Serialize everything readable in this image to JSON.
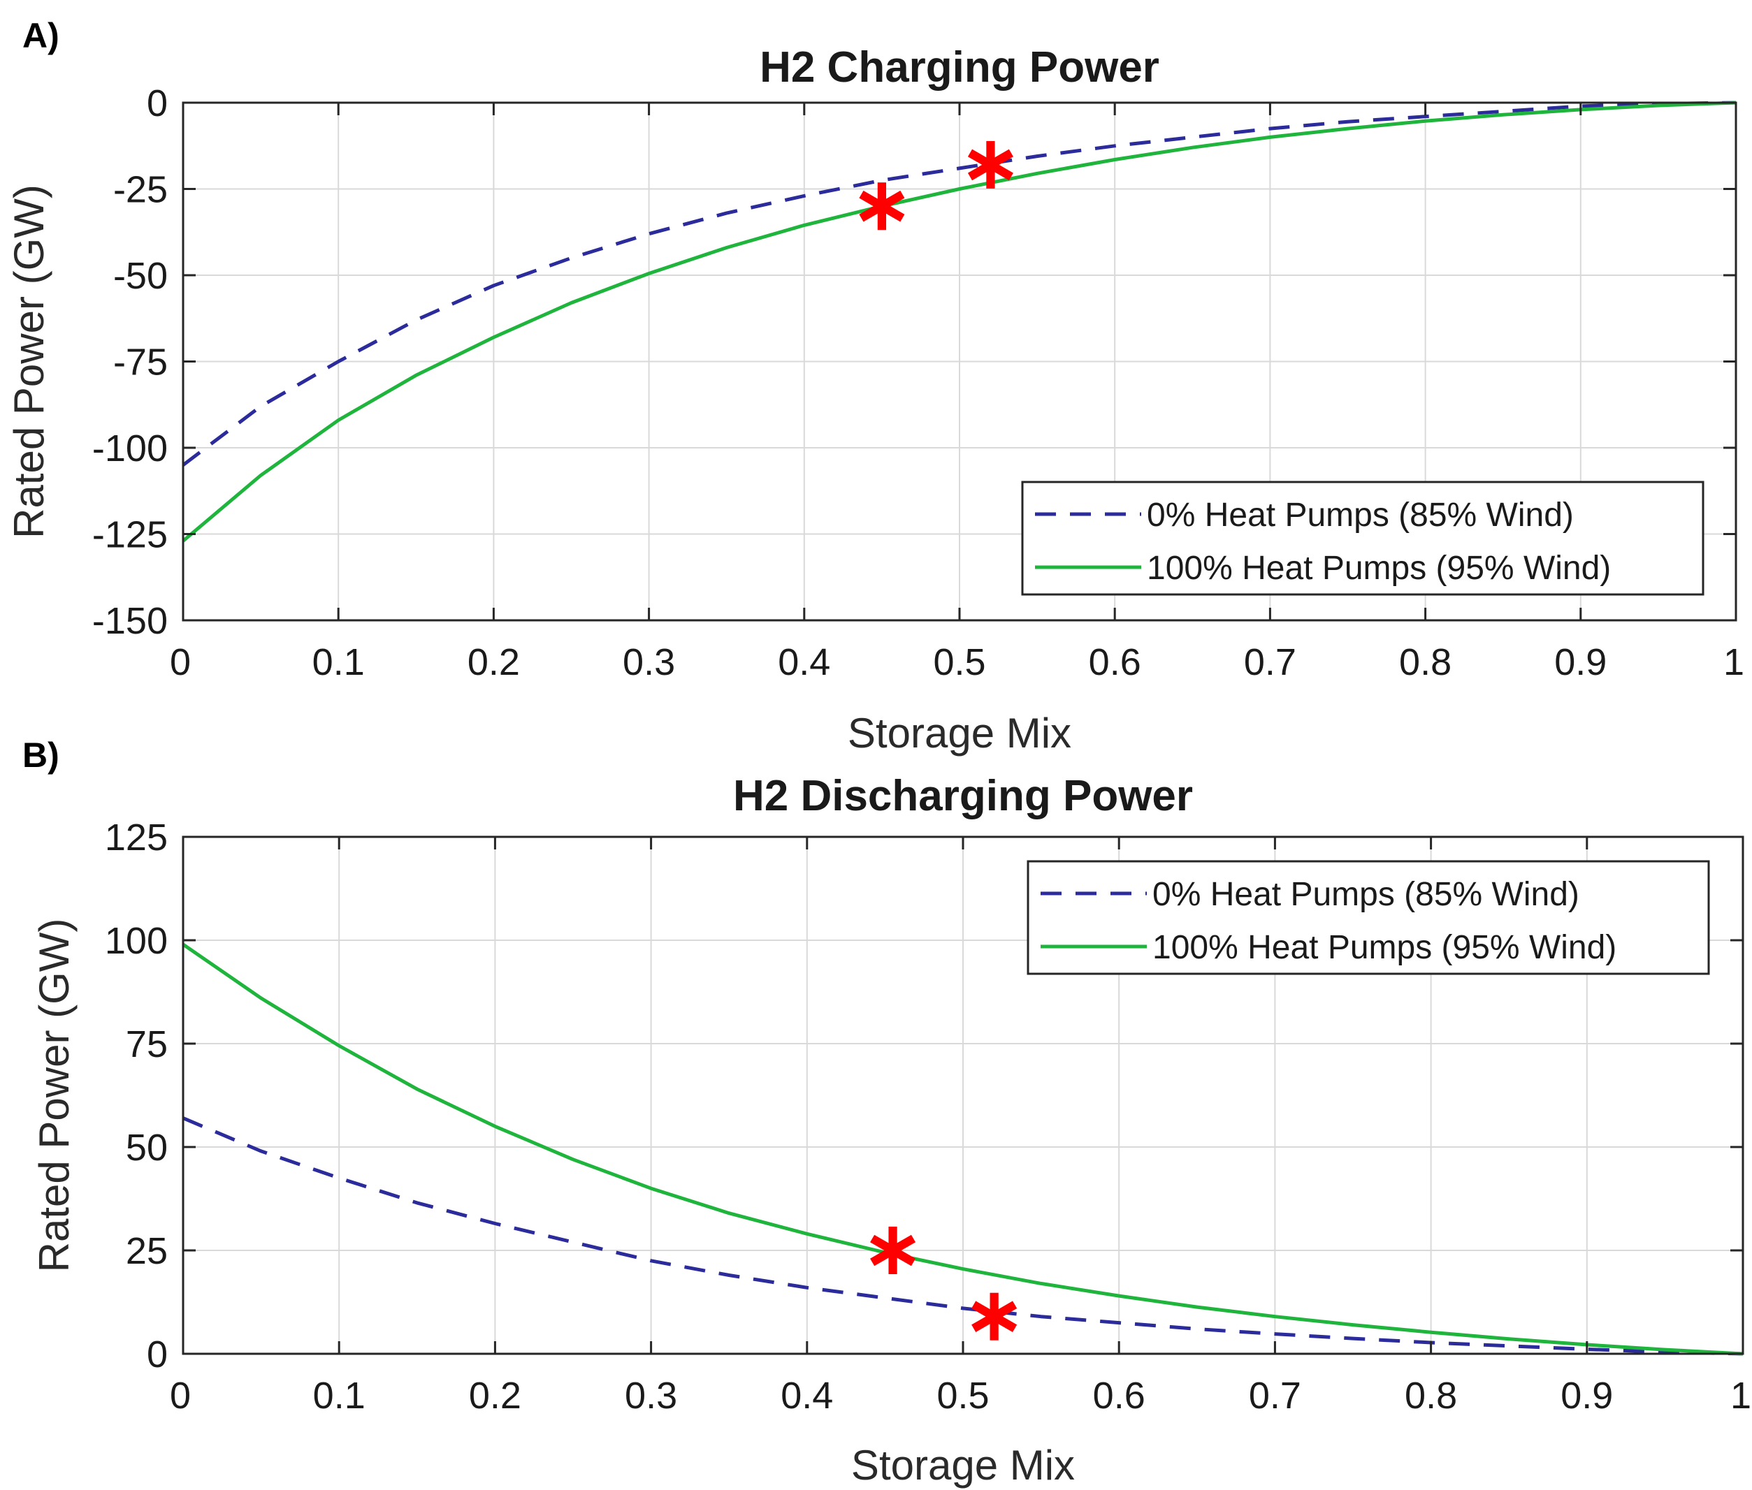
{
  "figure": {
    "colors": {
      "series_dashed": "#2b2b9b",
      "series_solid": "#1fb53c",
      "marker": "#ff0000",
      "grid": "#d9d9d9",
      "axis": "#262626"
    }
  },
  "chart_data": [
    {
      "panel_label": "A)",
      "type": "line",
      "title": "H2 Charging Power",
      "xlabel": "Storage Mix",
      "ylabel": "Rated Power (GW)",
      "xlim": [
        0,
        1
      ],
      "ylim": [
        -150,
        0
      ],
      "xticks": [
        0,
        0.1,
        0.2,
        0.3,
        0.4,
        0.5,
        0.6,
        0.7,
        0.8,
        0.9,
        1
      ],
      "xtick_labels": [
        "0",
        "0.1",
        "0.2",
        "0.3",
        "0.4",
        "0.5",
        "0.6",
        "0.7",
        "0.8",
        "0.9",
        "1"
      ],
      "yticks": [
        0,
        -25,
        -50,
        -75,
        -100,
        -125,
        -150
      ],
      "ytick_labels": [
        "0",
        "-25",
        "-50",
        "-75",
        "-100",
        "-125",
        "-150"
      ],
      "grid": true,
      "legend_position": "bottom-right",
      "series": [
        {
          "name": "0% Heat Pumps (85% Wind)",
          "style": "dashed",
          "x": [
            0,
            0.05,
            0.1,
            0.15,
            0.2,
            0.25,
            0.3,
            0.35,
            0.4,
            0.45,
            0.5,
            0.55,
            0.6,
            0.65,
            0.7,
            0.75,
            0.8,
            0.85,
            0.9,
            0.95,
            1
          ],
          "y": [
            -105,
            -88,
            -75,
            -63,
            -53,
            -45,
            -38,
            -32,
            -27,
            -22.5,
            -19,
            -15.5,
            -12.5,
            -10,
            -7.5,
            -5.5,
            -4,
            -2.5,
            -1,
            -0.3,
            0
          ],
          "marker": {
            "x": 0.52,
            "y": -18
          }
        },
        {
          "name": "100% Heat Pumps (95% Wind)",
          "style": "solid",
          "x": [
            0,
            0.05,
            0.1,
            0.15,
            0.2,
            0.25,
            0.3,
            0.35,
            0.4,
            0.45,
            0.5,
            0.55,
            0.6,
            0.65,
            0.7,
            0.75,
            0.8,
            0.85,
            0.9,
            0.95,
            1
          ],
          "y": [
            -127,
            -108,
            -92,
            -79,
            -68,
            -58,
            -49.5,
            -42,
            -35.5,
            -30,
            -25,
            -20.5,
            -16.5,
            -13,
            -10,
            -7.5,
            -5.3,
            -3.5,
            -2,
            -0.8,
            0
          ],
          "marker": {
            "x": 0.45,
            "y": -30
          }
        }
      ]
    },
    {
      "panel_label": "B)",
      "type": "line",
      "title": "H2 Discharging Power",
      "xlabel": "Storage Mix",
      "ylabel": "Rated Power (GW)",
      "xlim": [
        0,
        1
      ],
      "ylim": [
        0,
        125
      ],
      "xticks": [
        0,
        0.1,
        0.2,
        0.3,
        0.4,
        0.5,
        0.6,
        0.7,
        0.8,
        0.9,
        1
      ],
      "xtick_labels": [
        "0",
        "0.1",
        "0.2",
        "0.3",
        "0.4",
        "0.5",
        "0.6",
        "0.7",
        "0.8",
        "0.9",
        "1"
      ],
      "yticks": [
        0,
        25,
        50,
        75,
        100,
        125
      ],
      "ytick_labels": [
        "0",
        "25",
        "50",
        "75",
        "100",
        "125"
      ],
      "grid": true,
      "legend_position": "top-right",
      "series": [
        {
          "name": "0% Heat Pumps (85% Wind)",
          "style": "dashed",
          "x": [
            0,
            0.05,
            0.1,
            0.15,
            0.2,
            0.25,
            0.3,
            0.35,
            0.4,
            0.45,
            0.5,
            0.55,
            0.6,
            0.65,
            0.7,
            0.75,
            0.8,
            0.85,
            0.9,
            0.95,
            1
          ],
          "y": [
            57,
            49,
            42.5,
            36.5,
            31.5,
            27,
            22.5,
            19,
            16,
            13.5,
            11,
            9,
            7.5,
            6,
            4.8,
            3.7,
            2.7,
            1.9,
            1.1,
            0.4,
            0
          ],
          "marker": {
            "x": 0.52,
            "y": 9
          }
        },
        {
          "name": "100% Heat Pumps (95% Wind)",
          "style": "solid",
          "x": [
            0,
            0.05,
            0.1,
            0.15,
            0.2,
            0.25,
            0.3,
            0.35,
            0.4,
            0.45,
            0.5,
            0.55,
            0.6,
            0.65,
            0.7,
            0.75,
            0.8,
            0.85,
            0.9,
            0.95,
            1
          ],
          "y": [
            99,
            86,
            74.5,
            64,
            55,
            47,
            40,
            34,
            29,
            24.5,
            20.5,
            17,
            14,
            11.3,
            9,
            7,
            5.2,
            3.6,
            2.2,
            1,
            0
          ],
          "marker": {
            "x": 0.455,
            "y": 25
          }
        }
      ]
    }
  ]
}
